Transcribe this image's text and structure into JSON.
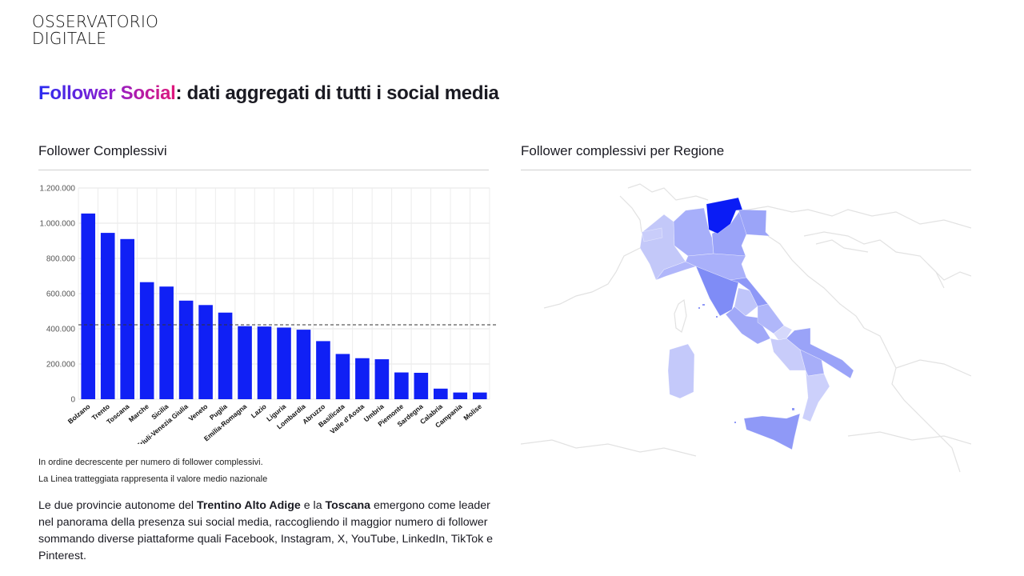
{
  "logo": {
    "line1": "OSSERVATORIO",
    "line2": "DIGITALE"
  },
  "header": {
    "title_highlight": "Follower Social",
    "title_rest": ": dati aggregati di tutti i social media"
  },
  "left_section": {
    "title": "Follower Complessivi"
  },
  "right_section": {
    "title": "Follower complessivi per Regione"
  },
  "notes": {
    "line1": "In ordine decrescente per numero di follower complessivi.",
    "line2": "La Linea tratteggiata rappresenta il valore medio nazionale"
  },
  "paragraph": {
    "p1": "Le due provincie autonome del ",
    "b1": "Trentino Alto Adige",
    "p2": " e la ",
    "b2": "Toscana",
    "p3": " emergono come leader nel panorama della presenza sui social media, raccogliendo il maggior numero di follower sommando diverse piattaforme quali Facebook, Instagram, X, YouTube, LinkedIn, TikTok e Pinterest."
  },
  "colors": {
    "bar": "#1020f5",
    "accent_start": "#2a2cf0",
    "accent_end": "#e0187a"
  },
  "chart_data": {
    "type": "bar",
    "categories": [
      "Bolzano",
      "Trento",
      "Toscana",
      "Marche",
      "Sicilia",
      "Friuli-Venezia Giulia",
      "Veneto",
      "Puglia",
      "Emilia-Romagna",
      "Lazio",
      "Liguria",
      "Lombardia",
      "Abruzzo",
      "Basilicata",
      "Valle d'Aosta",
      "Umbria",
      "Piemonte",
      "Sardegna",
      "Calabria",
      "Campania",
      "Molise"
    ],
    "values": [
      1055000,
      945000,
      910000,
      665000,
      640000,
      560000,
      535000,
      492000,
      415000,
      413000,
      407000,
      395000,
      330000,
      257000,
      233000,
      227000,
      152000,
      150000,
      60000,
      38000,
      38000
    ],
    "yticks": [
      "0",
      "200.000",
      "400.000",
      "600.000",
      "800.000",
      "1.000.000",
      "1.200.000"
    ],
    "ylim": [
      0,
      1200000
    ],
    "reference_line": {
      "value": 423000,
      "style": "dashed"
    },
    "grid": true,
    "xlabel": "",
    "ylabel": ""
  },
  "map_data": {
    "type": "choropleth",
    "regions": [
      {
        "name": "Trentino-Alto Adige",
        "color": "#0a1cf5"
      },
      {
        "name": "Piemonte",
        "color": "#c3c8f9"
      },
      {
        "name": "Valle d'Aosta",
        "color": "#c9cdfa"
      },
      {
        "name": "Lombardia",
        "color": "#a7affa"
      },
      {
        "name": "Veneto",
        "color": "#9aa3f9"
      },
      {
        "name": "Friuli-Venezia Giulia",
        "color": "#9ba4f8"
      },
      {
        "name": "Liguria",
        "color": "#b0b6fa"
      },
      {
        "name": "Emilia-Romagna",
        "color": "#a9b0fa"
      },
      {
        "name": "Toscana",
        "color": "#7f8cf6"
      },
      {
        "name": "Marche",
        "color": "#8e98f7"
      },
      {
        "name": "Umbria",
        "color": "#bfc5fa"
      },
      {
        "name": "Lazio",
        "color": "#a0a8f8"
      },
      {
        "name": "Abruzzo",
        "color": "#b0b7fa"
      },
      {
        "name": "Molise",
        "color": "#d5d8fb"
      },
      {
        "name": "Campania",
        "color": "#c8ccfa"
      },
      {
        "name": "Puglia",
        "color": "#9aa3f8"
      },
      {
        "name": "Basilicata",
        "color": "#a7aef9"
      },
      {
        "name": "Calabria",
        "color": "#ccd0fb"
      },
      {
        "name": "Sicilia",
        "color": "#8f99f7"
      },
      {
        "name": "Sardegna",
        "color": "#c4c9fa"
      }
    ]
  }
}
